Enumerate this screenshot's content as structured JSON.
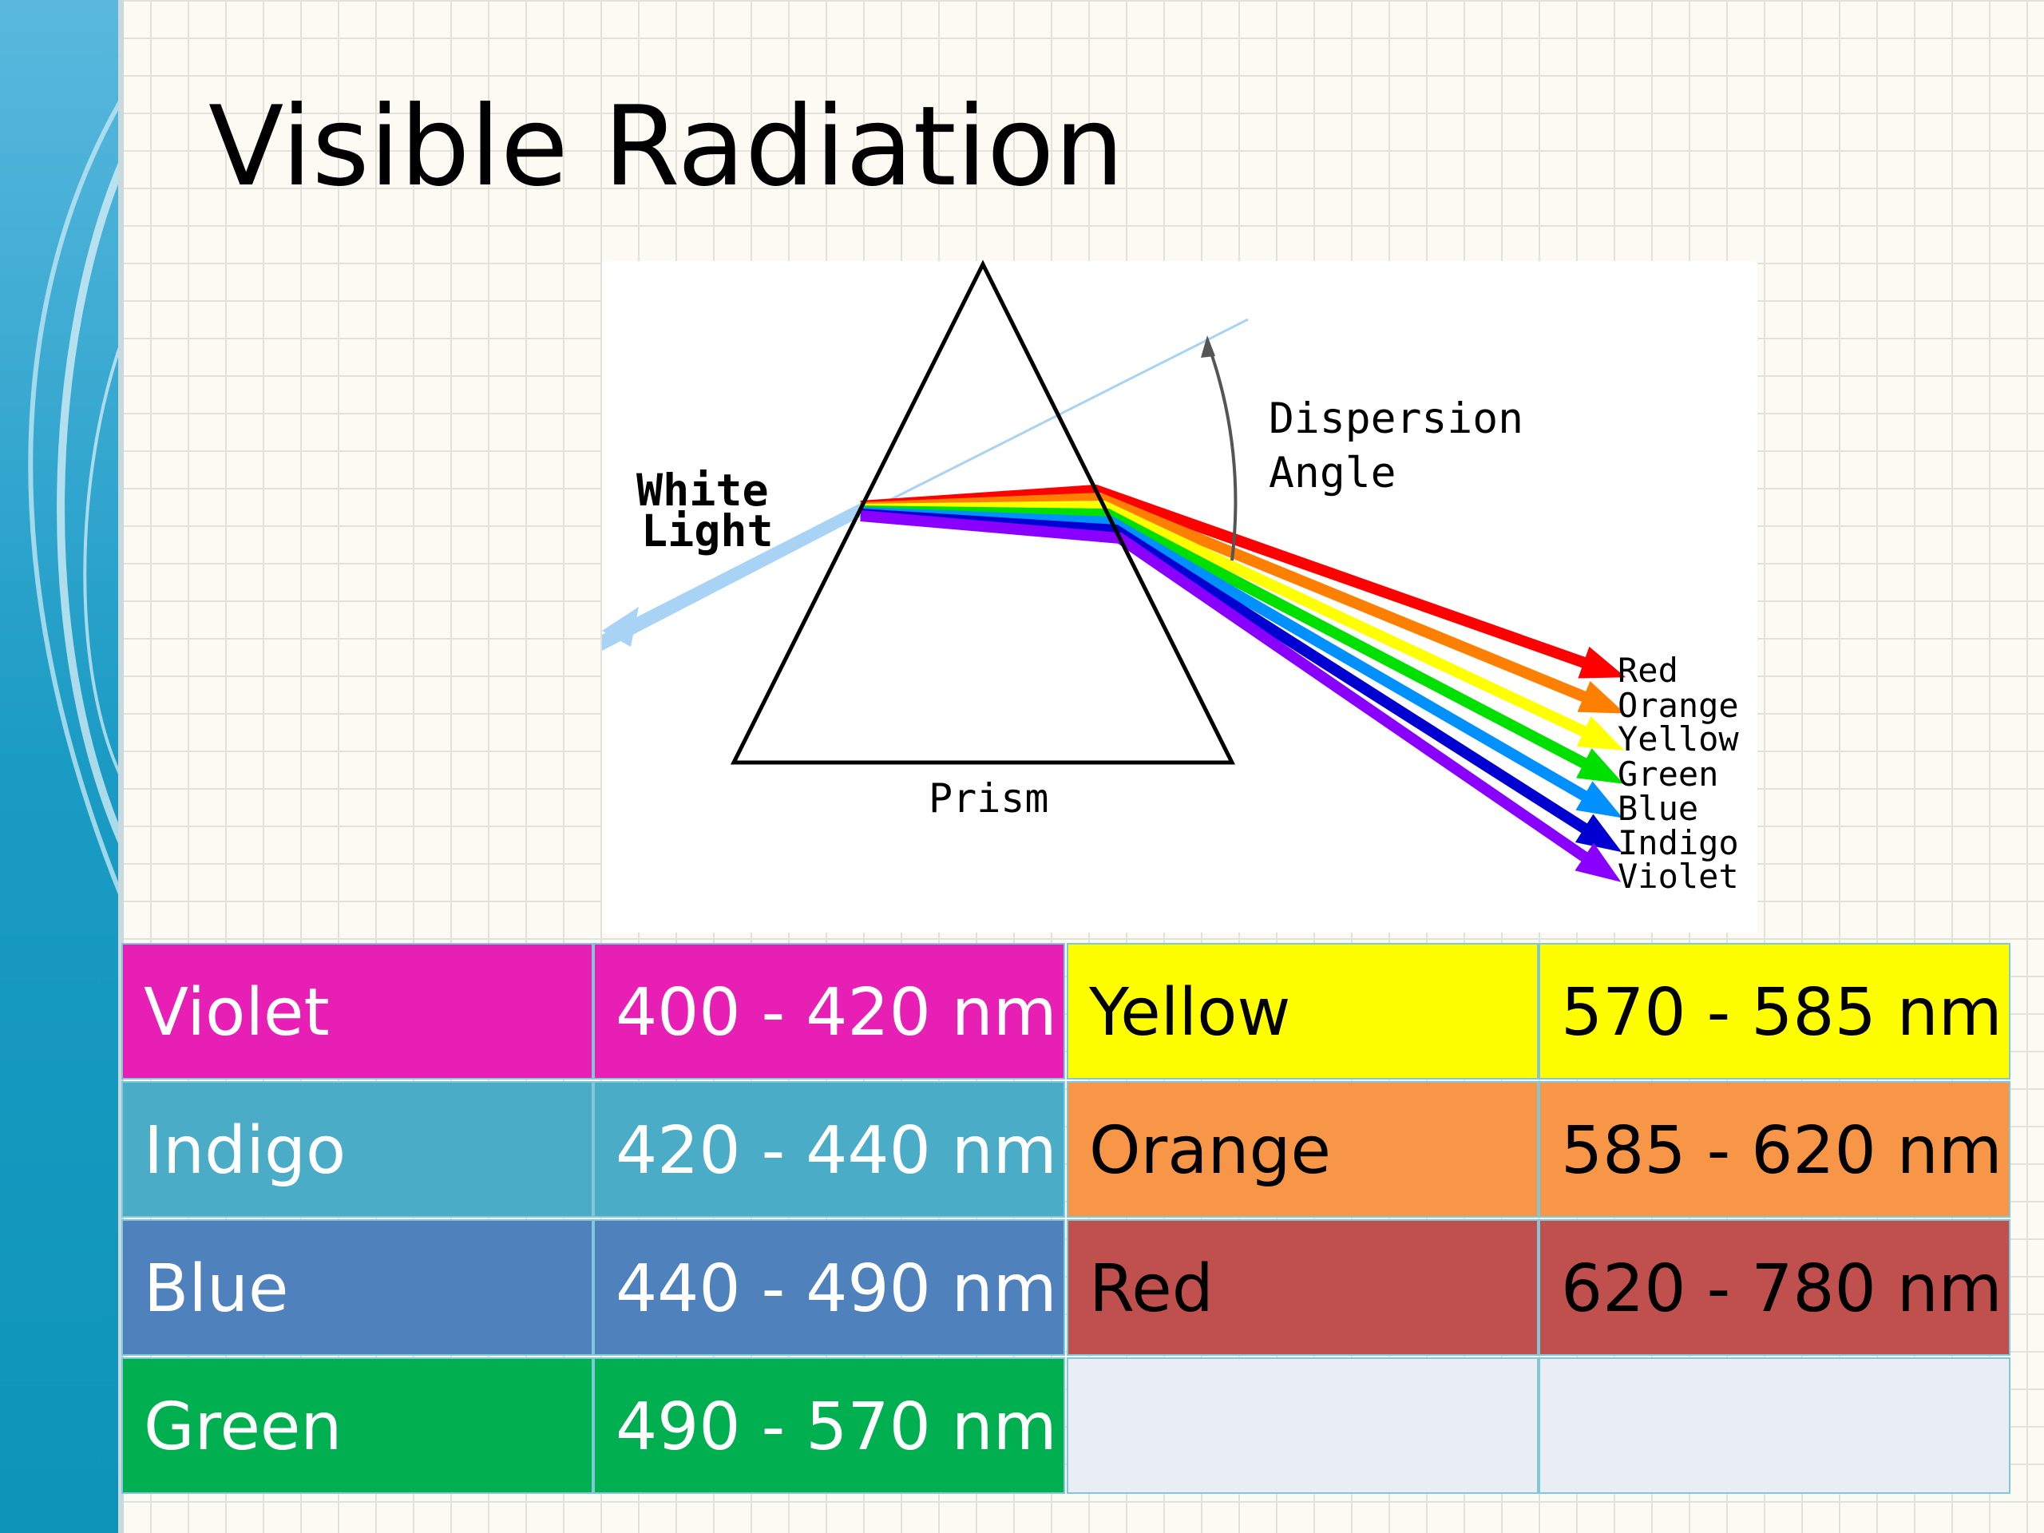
{
  "title": "Visible Radiation",
  "diagram": {
    "input_label": [
      "White",
      "Light"
    ],
    "angle_label": [
      "Dispersion",
      "Angle"
    ],
    "prism_label": "Prism",
    "spectrum": [
      "Red",
      "Orange",
      "Yellow",
      "Green",
      "Blue",
      "Indigo",
      "Violet"
    ]
  },
  "table": {
    "rows": [
      [
        "Violet",
        "400 - 420 nm",
        "Yellow",
        "570 - 585 nm"
      ],
      [
        "Indigo",
        "420 - 440 nm",
        "Orange",
        "585 - 620 nm"
      ],
      [
        "Blue",
        "440 - 490 nm",
        "Red",
        "620 - 780 nm"
      ],
      [
        "Green",
        "490 - 570 nm"
      ]
    ]
  }
}
